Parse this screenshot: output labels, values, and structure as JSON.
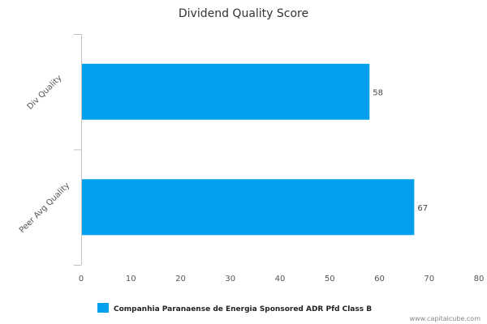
{
  "chart_data": {
    "type": "bar",
    "orientation": "horizontal",
    "title": "Dividend Quality Score",
    "categories": [
      "Div Quality",
      "Peer Avg Quality"
    ],
    "series": [
      {
        "name": "Companhia Paranaense de Energia Sponsored ADR Pfd Class B",
        "values": [
          58,
          67
        ],
        "color": "#049fed"
      }
    ],
    "xlim": [
      0,
      80
    ],
    "xticks": [
      0,
      10,
      20,
      30,
      40,
      50,
      60,
      70,
      80
    ],
    "xlabel": "",
    "ylabel": "",
    "grid": false,
    "legend_position": "bottom"
  },
  "credit": "www.capitalcube.com",
  "colors": {
    "bar": "#049fed",
    "axis": "#c0c0c0"
  }
}
